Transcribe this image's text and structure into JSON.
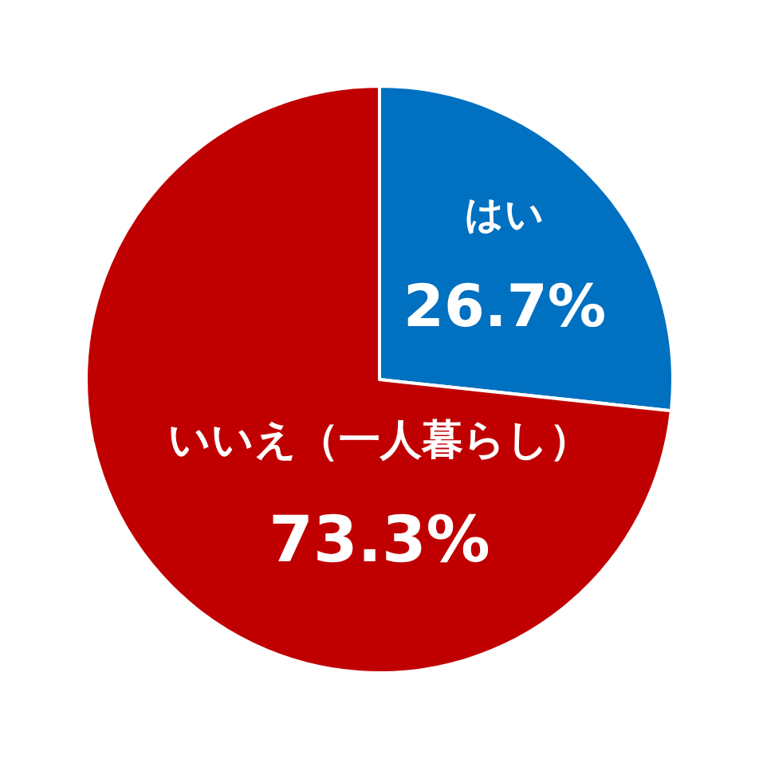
{
  "chart_data": {
    "type": "pie",
    "categories": [
      "はい",
      "いいえ（一人暮らし）"
    ],
    "values": [
      26.7,
      73.3
    ],
    "colors": [
      "#0070c0",
      "#c00000"
    ],
    "value_labels": [
      "26.7%",
      "73.3%"
    ],
    "legend": false
  }
}
